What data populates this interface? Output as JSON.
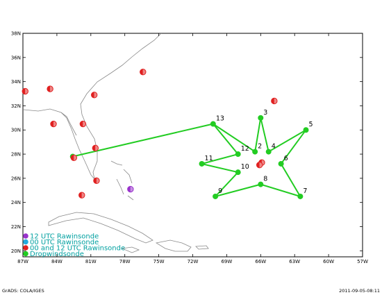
{
  "map": {
    "lat_ticks": [
      "38N",
      "36N",
      "34N",
      "32N",
      "30N",
      "28N",
      "26N",
      "24N",
      "22N",
      "20N"
    ],
    "lon_ticks": [
      "87W",
      "84W",
      "81W",
      "78W",
      "75W",
      "72W",
      "69W",
      "66W",
      "63W",
      "60W",
      "57W"
    ],
    "extent": {
      "lon": [
        -87,
        -57
      ],
      "lat": [
        19.5,
        38
      ]
    }
  },
  "flight_track": {
    "color": "#22cc22",
    "points": [
      {
        "label": "",
        "lon": -82.6,
        "lat": 27.8
      },
      {
        "label": "13",
        "lon": -70.2,
        "lat": 30.5
      },
      {
        "label": "3",
        "lon": -66.0,
        "lat": 31.0
      },
      {
        "label": "5",
        "lon": -62.0,
        "lat": 30.0
      },
      {
        "label": "2",
        "lon": -66.5,
        "lat": 28.2
      },
      {
        "label": "4",
        "lon": -65.3,
        "lat": 28.2
      },
      {
        "label": "12",
        "lon": -68.0,
        "lat": 28.0
      },
      {
        "label": "11",
        "lon": -71.2,
        "lat": 27.2
      },
      {
        "label": "6",
        "lon": -64.2,
        "lat": 27.2
      },
      {
        "label": "10",
        "lon": -68.0,
        "lat": 26.5
      },
      {
        "label": "8",
        "lon": -66.0,
        "lat": 25.5
      },
      {
        "label": "9",
        "lon": -70.0,
        "lat": 24.5
      },
      {
        "label": "7",
        "lon": -62.5,
        "lat": 24.5
      }
    ],
    "path_order": [
      "",
      "13",
      "2",
      "3",
      "4",
      "5",
      "6",
      "7",
      "8",
      "9",
      "10",
      "11",
      "12",
      "13"
    ]
  },
  "rawinsonde_00_12": {
    "color": "#e02020",
    "stations": [
      {
        "lon": -86.8,
        "lat": 33.2
      },
      {
        "lon": -84.6,
        "lat": 33.4
      },
      {
        "lon": -76.4,
        "lat": 34.8
      },
      {
        "lon": -80.7,
        "lat": 32.9
      },
      {
        "lon": -64.8,
        "lat": 32.4
      },
      {
        "lon": -84.3,
        "lat": 30.5
      },
      {
        "lon": -81.7,
        "lat": 30.5
      },
      {
        "lon": -80.6,
        "lat": 28.5
      },
      {
        "lon": -81.8,
        "lat": 24.6
      },
      {
        "lon": -80.5,
        "lat": 25.8
      },
      {
        "lon": -82.5,
        "lat": 27.7
      },
      {
        "lon": -65.9,
        "lat": 27.3
      },
      {
        "lon": -66.1,
        "lat": 27.1
      }
    ]
  },
  "rawinsonde_12": {
    "color": "#9933cc",
    "stations": [
      {
        "lon": -77.5,
        "lat": 25.1
      }
    ]
  },
  "legend": {
    "entries": [
      {
        "label": "12 UTC Rawinsonde",
        "color": "#9933cc"
      },
      {
        "label": "00 UTC Rawinsonde",
        "color": "#22aadd"
      },
      {
        "label": "00 and 12 UTC Rawinsonde",
        "color": "#e02020"
      },
      {
        "label": "Dropwindsonde",
        "color": "#22cc22"
      }
    ]
  },
  "footer": {
    "left": "GrADS: COLA/IGES",
    "right": "2011-09-05-08:11"
  }
}
